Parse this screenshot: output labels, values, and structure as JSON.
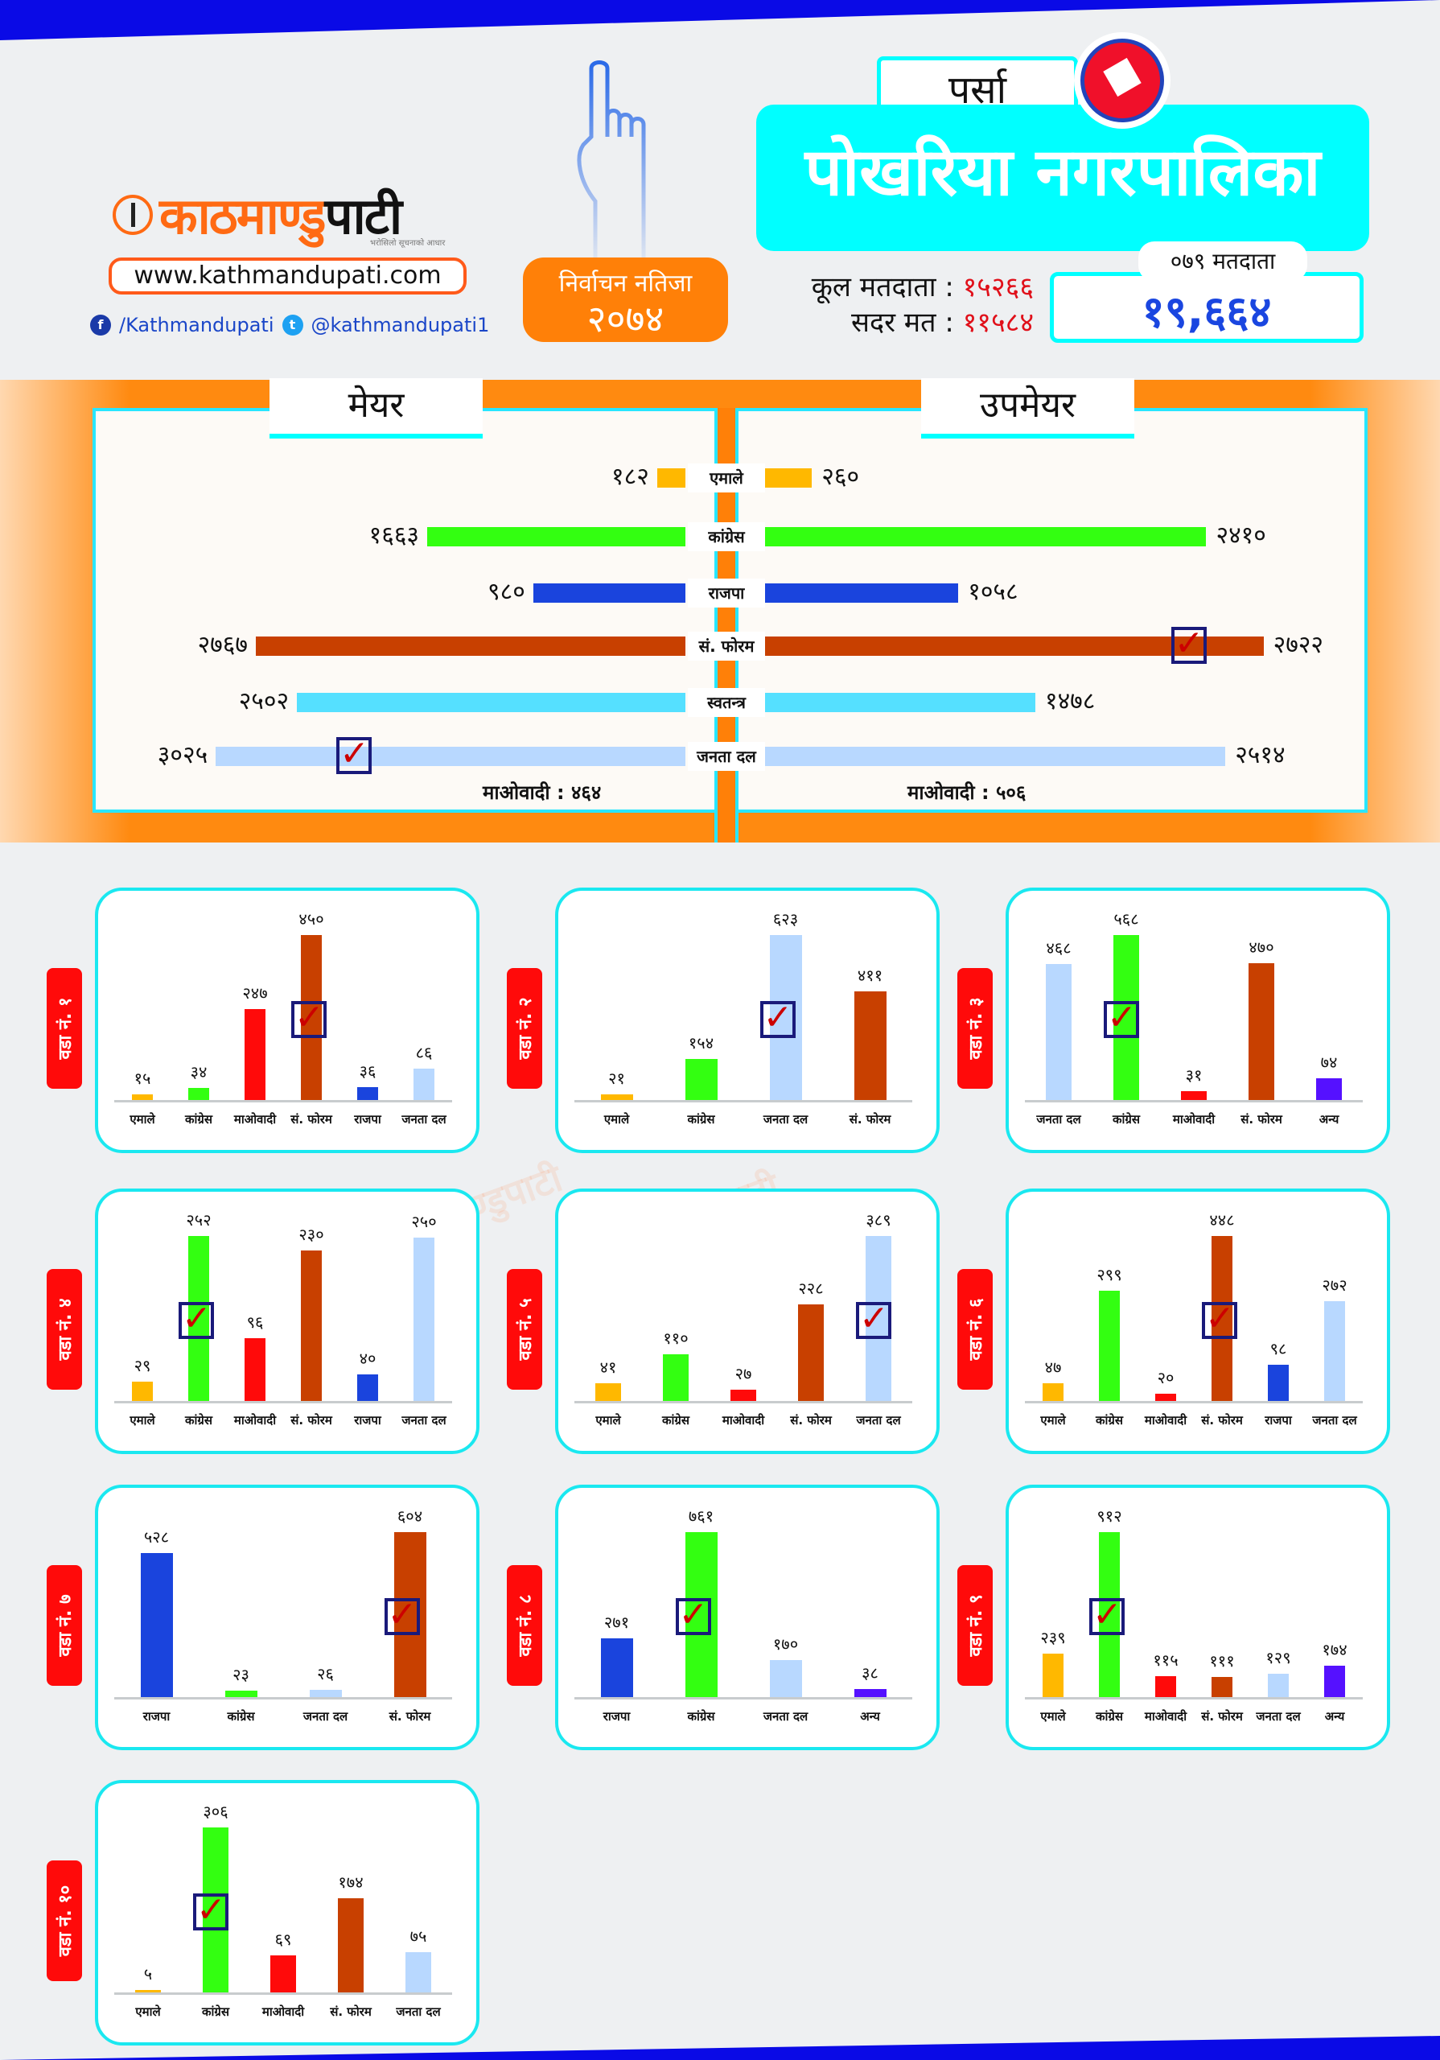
{
  "brand": {
    "logo_orange": "काठमाण्डु",
    "logo_black": "पाटी",
    "tagline": "भरोसिलो सूचनाको आधार",
    "website": "www.kathmandupati.com",
    "facebook": "/Kathmandupati",
    "twitter": "@kathmandupati1"
  },
  "badge": {
    "title": "निर्वाचन नतिजा",
    "year": "२०७४"
  },
  "district": "पर्सा",
  "municipality": "पोखरिया नगरपालिका",
  "voters": {
    "total_label": "कूल मतदाता :",
    "total_value": "१५२६६",
    "valid_label": "सदर मत :",
    "valid_value": "११५८४",
    "f079_label": "०७९ मतदाता",
    "f079_value": "१९,६६४"
  },
  "colors": {
    "एमाले": "#ffb800",
    "कांग्रेस": "#33ff11",
    "माओवादी": "#ff0a0a",
    "सं. फोरम": "#c84000",
    "राजपा": "#1a44dd",
    "जनता दल": "#b8d8ff",
    "अन्य": "#5511ff",
    "स्वतन्त्र": "#55e0ff"
  },
  "mayor_section": {
    "mayor_title": "मेयर",
    "deputy_title": "उपमेयर",
    "rows": [
      {
        "party": "एमाले",
        "mayor": 182,
        "deputy": 260
      },
      {
        "party": "कांग्रेस",
        "mayor": 1663,
        "deputy": 2410
      },
      {
        "party": "राजपा",
        "mayor": 980,
        "deputy": 1058
      },
      {
        "party": "सं. फोरम",
        "mayor": 2767,
        "deputy": 2722,
        "deputy_winner": true
      },
      {
        "party": "स्वतन्त्र",
        "mayor": 2502,
        "deputy": 1478
      },
      {
        "party": "जनता दल",
        "mayor": 3025,
        "deputy": 2514,
        "mayor_winner": true
      }
    ],
    "maoist_mayor": "माओवादी : ४६४",
    "maoist_deputy": "माओवादी : ५०६"
  },
  "ward_prefix": "वडा नं.",
  "wards": [
    {
      "no": "१",
      "bars": [
        {
          "p": "एमाले",
          "v": 15
        },
        {
          "p": "कांग्रेस",
          "v": 34
        },
        {
          "p": "माओवादी",
          "v": 247
        },
        {
          "p": "सं. फोरम",
          "v": 450,
          "win": true
        },
        {
          "p": "राजपा",
          "v": 36
        },
        {
          "p": "जनता दल",
          "v": 86
        }
      ]
    },
    {
      "no": "२",
      "bars": [
        {
          "p": "एमाले",
          "v": 21
        },
        {
          "p": "कांग्रेस",
          "v": 154
        },
        {
          "p": "जनता दल",
          "v": 623,
          "win": true
        },
        {
          "p": "सं. फोरम",
          "v": 411
        }
      ]
    },
    {
      "no": "३",
      "bars": [
        {
          "p": "जनता दल",
          "v": 468
        },
        {
          "p": "कांग्रेस",
          "v": 568,
          "win": true
        },
        {
          "p": "माओवादी",
          "v": 31
        },
        {
          "p": "सं. फोरम",
          "v": 470
        },
        {
          "p": "अन्य",
          "v": 74
        }
      ]
    },
    {
      "no": "४",
      "bars": [
        {
          "p": "एमाले",
          "v": 29
        },
        {
          "p": "कांग्रेस",
          "v": 252,
          "win": true
        },
        {
          "p": "माओवादी",
          "v": 96
        },
        {
          "p": "सं. फोरम",
          "v": 230
        },
        {
          "p": "राजपा",
          "v": 40
        },
        {
          "p": "जनता दल",
          "v": 250
        }
      ]
    },
    {
      "no": "५",
      "bars": [
        {
          "p": "एमाले",
          "v": 41
        },
        {
          "p": "कांग्रेस",
          "v": 110
        },
        {
          "p": "माओवादी",
          "v": 27
        },
        {
          "p": "सं. फोरम",
          "v": 228
        },
        {
          "p": "जनता दल",
          "v": 389,
          "win": true
        }
      ]
    },
    {
      "no": "६",
      "bars": [
        {
          "p": "एमाले",
          "v": 47
        },
        {
          "p": "कांग्रेस",
          "v": 299
        },
        {
          "p": "माओवादी",
          "v": 20
        },
        {
          "p": "सं. फोरम",
          "v": 448,
          "win": true
        },
        {
          "p": "राजपा",
          "v": 98
        },
        {
          "p": "जनता दल",
          "v": 272
        }
      ]
    },
    {
      "no": "७",
      "bars": [
        {
          "p": "राजपा",
          "v": 528
        },
        {
          "p": "कांग्रेस",
          "v": 23
        },
        {
          "p": "जनता दल",
          "v": 26
        },
        {
          "p": "सं. फोरम",
          "v": 604,
          "win": true
        }
      ]
    },
    {
      "no": "८",
      "bars": [
        {
          "p": "राजपा",
          "v": 271
        },
        {
          "p": "कांग्रेस",
          "v": 761,
          "win": true
        },
        {
          "p": "जनता दल",
          "v": 170
        },
        {
          "p": "अन्य",
          "v": 38
        }
      ]
    },
    {
      "no": "९",
      "bars": [
        {
          "p": "एमाले",
          "v": 239
        },
        {
          "p": "कांग्रेस",
          "v": 912,
          "win": true
        },
        {
          "p": "माओवादी",
          "v": 115
        },
        {
          "p": "सं. फोरम",
          "v": 111
        },
        {
          "p": "जनता दल",
          "v": 129
        },
        {
          "p": "अन्य",
          "v": 174
        }
      ]
    },
    {
      "no": "१०",
      "bars": [
        {
          "p": "एमाले",
          "v": 5
        },
        {
          "p": "कांग्रेस",
          "v": 306,
          "win": true
        },
        {
          "p": "माओवादी",
          "v": 69
        },
        {
          "p": "सं. फोरम",
          "v": 174
        },
        {
          "p": "जनता दल",
          "v": 75
        }
      ]
    }
  ]
}
